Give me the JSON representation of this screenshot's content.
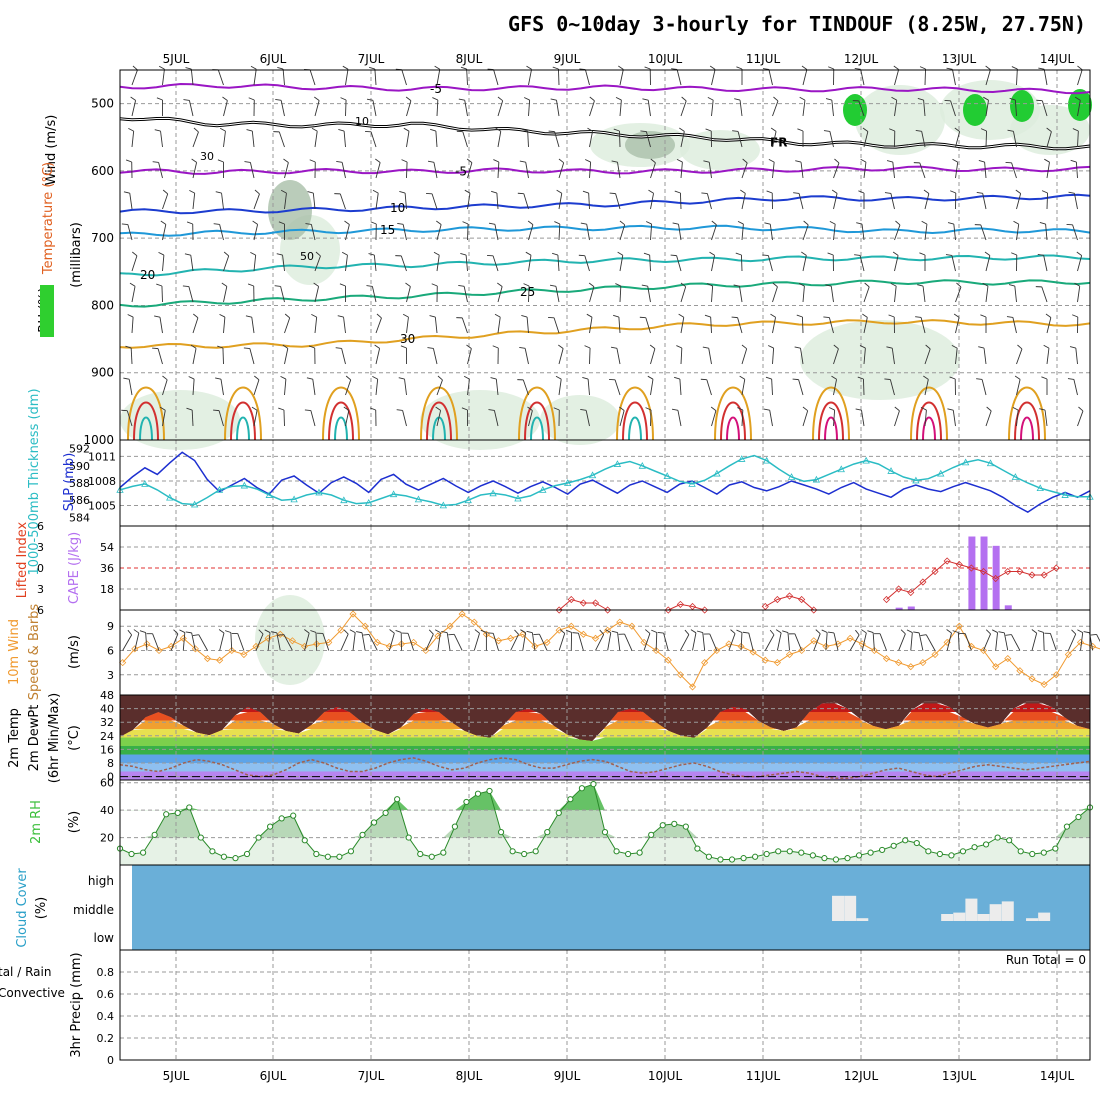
{
  "title": "GFS 0~10day 3-hourly for TINDOUF (8.25W, 27.75N)",
  "colors": {
    "purple": "#9a16c4",
    "blue": "#1c3ccf",
    "lightblue": "#1f98d8",
    "teal": "#22b3b0",
    "green": "#19a97a",
    "orange": "#e0a020",
    "red": "#d23030",
    "magenta": "#d4107a",
    "cyan": "#2bbcc4",
    "slp_blue": "#1d2fd0",
    "cape": "#b470f0",
    "wind_orange": "#f09a30",
    "cloud_bg": "#6aafd8",
    "rh_green": "#3cbf3c"
  },
  "chart_data": [
    {
      "type": "heatmap",
      "panel": "upper-air",
      "ylabel_parts": [
        "Wind (m/s)",
        "Temperature (°C)",
        "RH (%)",
        "(millibars)"
      ],
      "y_ticks": [
        500,
        600,
        700,
        800,
        900,
        1000
      ],
      "ylim": [
        1000,
        450
      ],
      "x_ticks": [
        "5JUL",
        "6JUL",
        "7JUL",
        "8JUL",
        "9JUL",
        "10JUL",
        "11JUL",
        "12JUL",
        "13JUL",
        "14JUL"
      ],
      "isotherms": [
        {
          "label": "-5",
          "level_mb": [
            475,
            473,
            476,
            478,
            477,
            476,
            478,
            479,
            478,
            480,
            482
          ],
          "color": "purple"
        },
        {
          "label": "FR",
          "level_mb": [
            520,
            530,
            532,
            531,
            540,
            545,
            550,
            558,
            562,
            563,
            565
          ],
          "color": "black"
        },
        {
          "label": "-5",
          "level_mb": [
            600,
            602,
            600,
            601,
            599,
            601,
            600,
            598,
            596,
            598,
            597
          ],
          "color": "purple"
        },
        {
          "label": "10",
          "level_mb": [
            660,
            660,
            658,
            655,
            652,
            650,
            645,
            640,
            642,
            640,
            638
          ],
          "color": "blue"
        },
        {
          "label": "15",
          "level_mb": [
            695,
            692,
            690,
            688,
            686,
            685,
            684,
            686,
            690,
            688,
            690
          ],
          "color": "lightblue"
        },
        {
          "label": "20",
          "level_mb": [
            755,
            748,
            742,
            740,
            736,
            733,
            732,
            730,
            730,
            729,
            728
          ],
          "color": "teal"
        },
        {
          "label": "25",
          "level_mb": [
            800,
            795,
            790,
            786,
            780,
            775,
            770,
            768,
            765,
            766,
            765
          ],
          "color": "green"
        },
        {
          "label": "30",
          "level_mb": [
            860,
            860,
            858,
            850,
            842,
            835,
            828,
            826,
            824,
            826,
            828
          ],
          "color": "orange"
        }
      ],
      "rh_labels": [
        "10",
        "30",
        "50"
      ]
    },
    {
      "type": "line",
      "panel": "thickness-slp",
      "ylabel_left": "1000-500mb Thickness (dm)",
      "ylabel_right": "SLP (mb)",
      "ticks_thickness": [
        584,
        586,
        588,
        590,
        592
      ],
      "ticks_slp": [
        1005,
        1008,
        1011
      ],
      "series": [
        {
          "values": [
            1007.2,
            1008.5,
            1009.6,
            1008.8,
            1010.2,
            1011.5,
            1010.5,
            1008.2,
            1006.7,
            1007.5,
            1008.3,
            1007.2,
            1006.4,
            1008.1,
            1008.6,
            1007.5,
            1006.5,
            1007.8,
            1008.5,
            1007.7,
            1006.6,
            1008.2,
            1008.8,
            1007.6,
            1006.9,
            1007.6,
            1008.3,
            1007.4,
            1006.6,
            1007.4,
            1008.0,
            1007.3,
            1006.5,
            1007.3,
            1007.9,
            1007.2,
            1006.4,
            1007.6,
            1008.1,
            1007.3,
            1006.5,
            1007.5,
            1008.0,
            1007.3,
            1006.6,
            1007.6,
            1008.0,
            1007.2,
            1006.4,
            1007.5,
            1007.9,
            1007.2,
            1006.8,
            1007.3,
            1008.0,
            1007.5,
            1007.0,
            1006.4,
            1007.2,
            1007.8,
            1007.0,
            1006.5,
            1006.0,
            1007.0,
            1007.5,
            1007.0,
            1006.7,
            1007.3,
            1007.8,
            1007.3,
            1006.8,
            1006.0,
            1005.0,
            1004.2,
            1005.2,
            1006.0,
            1006.6,
            1006.0,
            1006.8
          ],
          "axis": "slp",
          "color": "slp_blue"
        },
        {
          "values": [
            587.2,
            587.6,
            587.9,
            587.2,
            586.3,
            585.6,
            585.5,
            586.3,
            587.2,
            587.6,
            587.7,
            587.3,
            586.6,
            586.0,
            586.1,
            586.6,
            586.9,
            586.6,
            586.0,
            585.6,
            585.7,
            586.2,
            586.7,
            586.5,
            586.1,
            585.8,
            585.4,
            585.5,
            586.0,
            586.6,
            586.8,
            586.6,
            586.2,
            586.5,
            587.2,
            587.7,
            588.0,
            588.4,
            588.9,
            589.6,
            590.2,
            590.5,
            590.0,
            589.4,
            588.8,
            588.2,
            587.9,
            588.3,
            589.1,
            590.0,
            590.8,
            591.2,
            590.6,
            589.6,
            588.7,
            588.2,
            588.4,
            589.0,
            589.6,
            590.2,
            590.6,
            590.2,
            589.4,
            588.7,
            588.3,
            588.5,
            589.1,
            589.8,
            590.4,
            590.7,
            590.3,
            589.5,
            588.7,
            588.0,
            587.4,
            587.0,
            586.6,
            586.4,
            586.4
          ],
          "axis": "thickness",
          "color": "cyan"
        }
      ]
    },
    {
      "type": "bar",
      "panel": "cape-li",
      "ylabel_left": "Lifted Index",
      "ylabel_right": "CAPE (J/kg)",
      "ticks_li": [
        -6,
        -3,
        0,
        3,
        6
      ],
      "ticks_cape": [
        18,
        36,
        54
      ],
      "cape_bars": [
        {
          "i": 64,
          "v": 2
        },
        {
          "i": 65,
          "v": 3
        },
        {
          "i": 70,
          "v": 63
        },
        {
          "i": 71,
          "v": 63
        },
        {
          "i": 72,
          "v": 55
        },
        {
          "i": 73,
          "v": 4
        }
      ],
      "lifted_index": [
        null,
        null,
        null,
        null,
        null,
        null,
        null,
        null,
        null,
        null,
        null,
        null,
        null,
        null,
        null,
        null,
        null,
        null,
        null,
        null,
        null,
        null,
        null,
        null,
        null,
        null,
        null,
        null,
        null,
        null,
        null,
        null,
        null,
        null,
        null,
        null,
        6.0,
        4.5,
        5.0,
        5.0,
        6.0,
        null,
        null,
        null,
        null,
        6.0,
        5.2,
        5.5,
        6.0,
        null,
        null,
        null,
        null,
        5.5,
        4.5,
        4.0,
        4.5,
        6.0,
        null,
        null,
        null,
        null,
        null,
        4.5,
        3.0,
        3.5,
        2.0,
        0.5,
        -1.0,
        -0.5,
        0.0,
        0.5,
        1.5,
        0.5,
        0.5,
        1.0,
        1.0,
        0.0
      ],
      "li_start_index": 0
    },
    {
      "type": "line",
      "panel": "wind10m",
      "ylabel_left": "10m Wind",
      "ylabel_mid": "Speed & Barbs",
      "ylabel_right": "(m/s)",
      "ticks": [
        3,
        6,
        9
      ],
      "series": [
        {
          "values": [
            4.5,
            6.2,
            6.8,
            6.0,
            6.5,
            7.5,
            6.2,
            5.0,
            4.8,
            6.0,
            5.5,
            6.5,
            7.5,
            8.0,
            7.2,
            6.5,
            6.8,
            7.0,
            8.5,
            10.5,
            9.0,
            7.0,
            6.5,
            6.8,
            7.0,
            6.0,
            7.8,
            9.0,
            10.5,
            9.5,
            8.0,
            7.2,
            7.5,
            8.0,
            6.5,
            7.0,
            8.5,
            9.0,
            8.0,
            7.5,
            8.5,
            9.5,
            9.0,
            7.0,
            6.0,
            4.8,
            3.0,
            1.5,
            4.5,
            6.0,
            6.8,
            6.5,
            5.8,
            4.8,
            4.5,
            5.5,
            6.0,
            7.2,
            6.5,
            6.8,
            7.5,
            6.8,
            6.0,
            5.0,
            4.5,
            4.0,
            4.5,
            5.5,
            7.0,
            9.0,
            6.5,
            6.0,
            4.0,
            5.0,
            3.5,
            2.5,
            1.8,
            3.0,
            5.5,
            7.0,
            6.5,
            6.0,
            5.5,
            5.0
          ],
          "color": "wind_orange"
        }
      ]
    },
    {
      "type": "area",
      "panel": "temp2m",
      "ylabel": [
        "2m Temp",
        "2m DewPt",
        "(6hr Min/Max)",
        "(°C)"
      ],
      "ticks": [
        0,
        8,
        16,
        24,
        32,
        40,
        48
      ],
      "temperature": [
        23.5,
        27.5,
        35,
        38,
        35,
        30,
        26,
        24.5,
        27.5,
        36,
        41,
        38,
        31,
        27,
        25.5,
        30.5,
        38,
        41,
        38,
        32,
        27.5,
        25,
        29,
        37,
        40,
        38,
        32,
        27,
        24,
        23,
        30,
        38,
        40,
        37,
        30,
        25,
        22,
        21,
        29,
        38,
        40,
        38,
        32,
        27,
        24,
        23,
        29,
        38,
        41,
        40,
        33,
        29,
        27,
        29,
        38,
        43,
        44,
        40,
        34,
        30,
        28,
        30,
        39,
        44,
        44,
        41,
        35,
        31,
        29,
        31,
        40,
        44,
        44,
        41,
        35,
        30,
        28
      ],
      "dewpoint": [
        7,
        6,
        4,
        3,
        5,
        8,
        10,
        9,
        7,
        4,
        1,
        0,
        1,
        4,
        8,
        10,
        8,
        5,
        3,
        3,
        5,
        8,
        10,
        11,
        9,
        6,
        4,
        5,
        8,
        10,
        11,
        10,
        7,
        5,
        5,
        7,
        9,
        10,
        9,
        6,
        3,
        2,
        3,
        5,
        7,
        8,
        6,
        3,
        1,
        0,
        0,
        1,
        2,
        3,
        2,
        0,
        -1,
        -1,
        0,
        2,
        4,
        5,
        3,
        1,
        0,
        2,
        4,
        6,
        7,
        6,
        5,
        4,
        5,
        6,
        7,
        8,
        9
      ]
    },
    {
      "type": "area",
      "panel": "rh2m",
      "ylabel": "2m RH",
      "ylabel_right": "(%)",
      "ticks": [
        20,
        40,
        60
      ],
      "values": [
        12,
        8,
        9,
        22,
        37,
        38,
        42,
        20,
        10,
        6,
        5,
        8,
        20,
        28,
        34,
        36,
        18,
        8,
        6,
        6,
        10,
        22,
        31,
        38,
        48,
        20,
        8,
        6,
        9,
        28,
        46,
        52,
        54,
        24,
        10,
        8,
        10,
        24,
        38,
        48,
        56,
        59,
        24,
        10,
        8,
        9,
        22,
        29,
        30,
        28,
        12,
        6,
        4,
        4,
        5,
        6,
        8,
        10,
        10,
        9,
        7,
        5,
        4,
        5,
        7,
        9,
        11,
        14,
        18,
        16,
        10,
        8,
        7,
        10,
        13,
        15,
        20,
        18,
        10,
        8,
        9,
        12,
        28,
        35,
        42
      ]
    },
    {
      "type": "bar",
      "panel": "cloud",
      "ylabel": "Cloud Cover",
      "ylabel_right": "(%)",
      "levels": [
        "high",
        "middle",
        "low"
      ],
      "middle_bars": [
        {
          "i": 59,
          "v": 0.9
        },
        {
          "i": 60,
          "v": 0.9
        },
        {
          "i": 61,
          "v": 0.1
        },
        {
          "i": 68,
          "v": 0.25
        },
        {
          "i": 69,
          "v": 0.3
        },
        {
          "i": 70,
          "v": 0.8
        },
        {
          "i": 71,
          "v": 0.25
        },
        {
          "i": 72,
          "v": 0.6
        },
        {
          "i": 73,
          "v": 0.7
        },
        {
          "i": 75,
          "v": 0.1
        },
        {
          "i": 76,
          "v": 0.3
        }
      ]
    },
    {
      "type": "bar",
      "panel": "precip",
      "ylabel": "3hr Precip (mm)",
      "ylabel_left_parts": [
        "tal / Rain",
        "Convective"
      ],
      "ticks": [
        "0",
        "0.2",
        "0.4",
        "0.6",
        "0.8"
      ],
      "ylim": [
        0,
        1
      ],
      "run_total": "Run Total = 0"
    }
  ]
}
